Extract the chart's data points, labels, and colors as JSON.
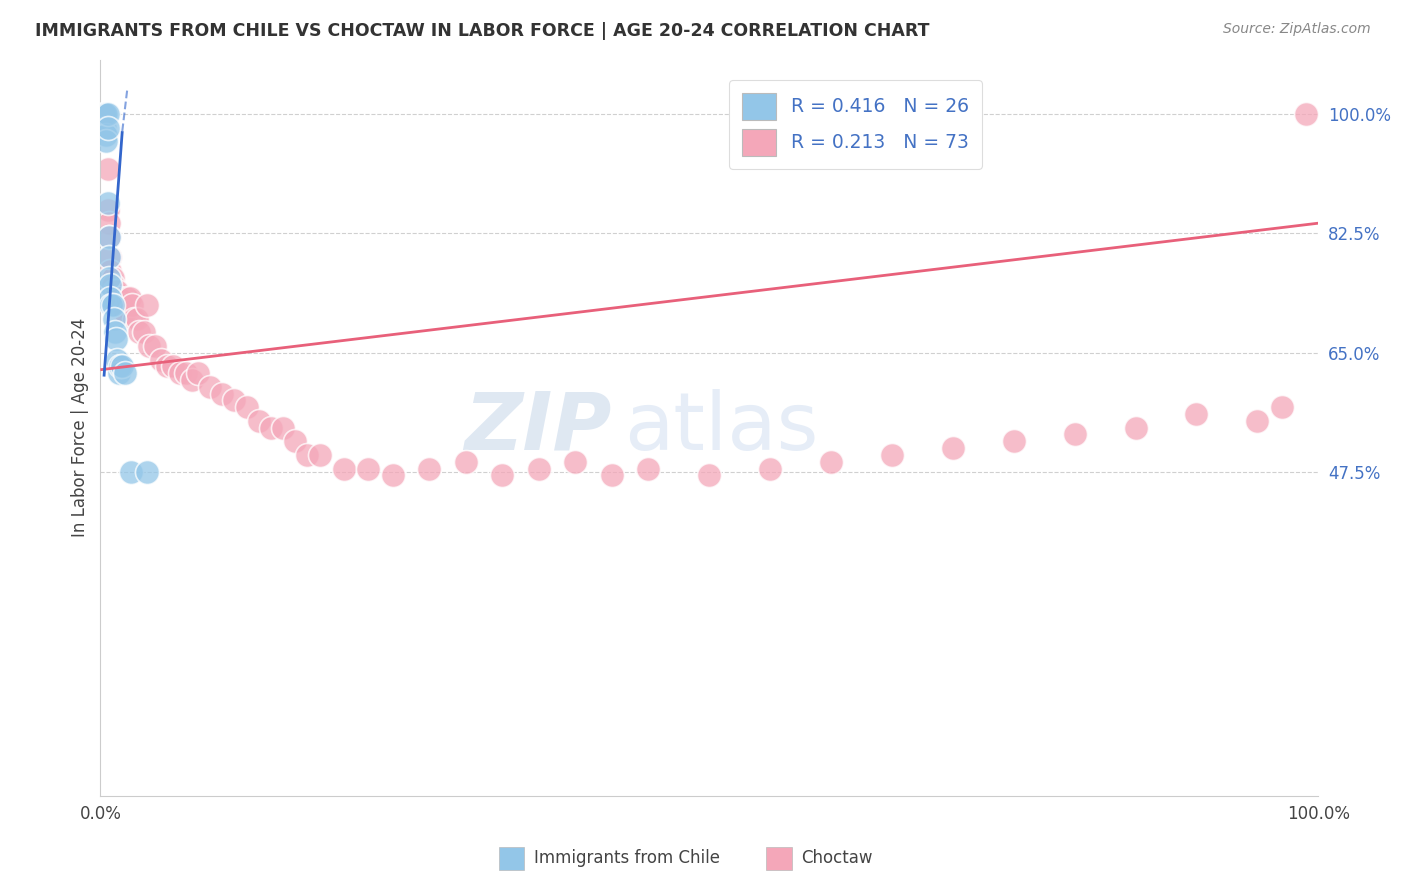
{
  "title": "IMMIGRANTS FROM CHILE VS CHOCTAW IN LABOR FORCE | AGE 20-24 CORRELATION CHART",
  "source": "Source: ZipAtlas.com",
  "ylabel": "In Labor Force | Age 20-24",
  "xlim": [
    0.0,
    1.0
  ],
  "ylim": [
    0.0,
    1.08
  ],
  "ytick_vals": [
    0.475,
    0.65,
    0.825,
    1.0
  ],
  "ytick_labels": [
    "47.5%",
    "65.0%",
    "82.5%",
    "100.0%"
  ],
  "xtick_vals": [
    0.0,
    1.0
  ],
  "xtick_labels": [
    "0.0%",
    "100.0%"
  ],
  "legend_r1": "R = 0.416",
  "legend_n1": "N = 26",
  "legend_r2": "R = 0.213",
  "legend_n2": "N = 73",
  "blue_color": "#93c6e8",
  "pink_color": "#f4a7b9",
  "blue_line_color": "#3366cc",
  "pink_line_color": "#e8607a",
  "blue_scatter_x": [
    0.003,
    0.004,
    0.004,
    0.005,
    0.005,
    0.005,
    0.006,
    0.006,
    0.006,
    0.007,
    0.007,
    0.007,
    0.008,
    0.008,
    0.009,
    0.01,
    0.011,
    0.012,
    0.013,
    0.014,
    0.015,
    0.016,
    0.018,
    0.02,
    0.025,
    0.038
  ],
  "blue_scatter_y": [
    1.0,
    1.0,
    0.98,
    1.0,
    0.97,
    0.96,
    1.0,
    0.98,
    0.87,
    0.82,
    0.79,
    0.76,
    0.75,
    0.73,
    0.72,
    0.72,
    0.7,
    0.68,
    0.67,
    0.64,
    0.62,
    0.63,
    0.63,
    0.62,
    0.475,
    0.475
  ],
  "pink_scatter_x": [
    0.003,
    0.004,
    0.004,
    0.005,
    0.005,
    0.006,
    0.006,
    0.007,
    0.007,
    0.008,
    0.008,
    0.009,
    0.01,
    0.01,
    0.011,
    0.012,
    0.013,
    0.014,
    0.015,
    0.016,
    0.017,
    0.018,
    0.019,
    0.02,
    0.022,
    0.024,
    0.026,
    0.028,
    0.03,
    0.032,
    0.036,
    0.038,
    0.04,
    0.045,
    0.05,
    0.055,
    0.06,
    0.065,
    0.07,
    0.075,
    0.08,
    0.09,
    0.1,
    0.11,
    0.12,
    0.13,
    0.14,
    0.15,
    0.16,
    0.17,
    0.18,
    0.2,
    0.22,
    0.24,
    0.27,
    0.3,
    0.33,
    0.36,
    0.39,
    0.42,
    0.45,
    0.5,
    0.55,
    0.6,
    0.65,
    0.7,
    0.75,
    0.8,
    0.85,
    0.9,
    0.95,
    0.97,
    0.99
  ],
  "pink_scatter_y": [
    1.0,
    1.0,
    1.0,
    1.0,
    1.0,
    0.92,
    0.86,
    0.84,
    0.82,
    0.79,
    0.77,
    0.76,
    0.76,
    0.75,
    0.74,
    0.74,
    0.73,
    0.74,
    0.73,
    0.72,
    0.72,
    0.72,
    0.71,
    0.71,
    0.73,
    0.73,
    0.72,
    0.7,
    0.7,
    0.68,
    0.68,
    0.72,
    0.66,
    0.66,
    0.64,
    0.63,
    0.63,
    0.62,
    0.62,
    0.61,
    0.62,
    0.6,
    0.59,
    0.58,
    0.57,
    0.55,
    0.54,
    0.54,
    0.52,
    0.5,
    0.5,
    0.48,
    0.48,
    0.47,
    0.48,
    0.49,
    0.47,
    0.48,
    0.49,
    0.47,
    0.48,
    0.47,
    0.48,
    0.49,
    0.5,
    0.51,
    0.52,
    0.53,
    0.54,
    0.56,
    0.55,
    0.57,
    1.0
  ],
  "blue_trend_x0": 0.003,
  "blue_trend_x1": 0.018,
  "blue_trend_y0": 0.615,
  "blue_trend_y1": 0.975,
  "pink_trend_x0": 0.0,
  "pink_trend_x1": 1.0,
  "pink_trend_y0": 0.625,
  "pink_trend_y1": 0.84,
  "watermark_zip": "ZIP",
  "watermark_atlas": "atlas",
  "bottom_legend_blue_label": "Immigrants from Chile",
  "bottom_legend_pink_label": "Choctaw"
}
